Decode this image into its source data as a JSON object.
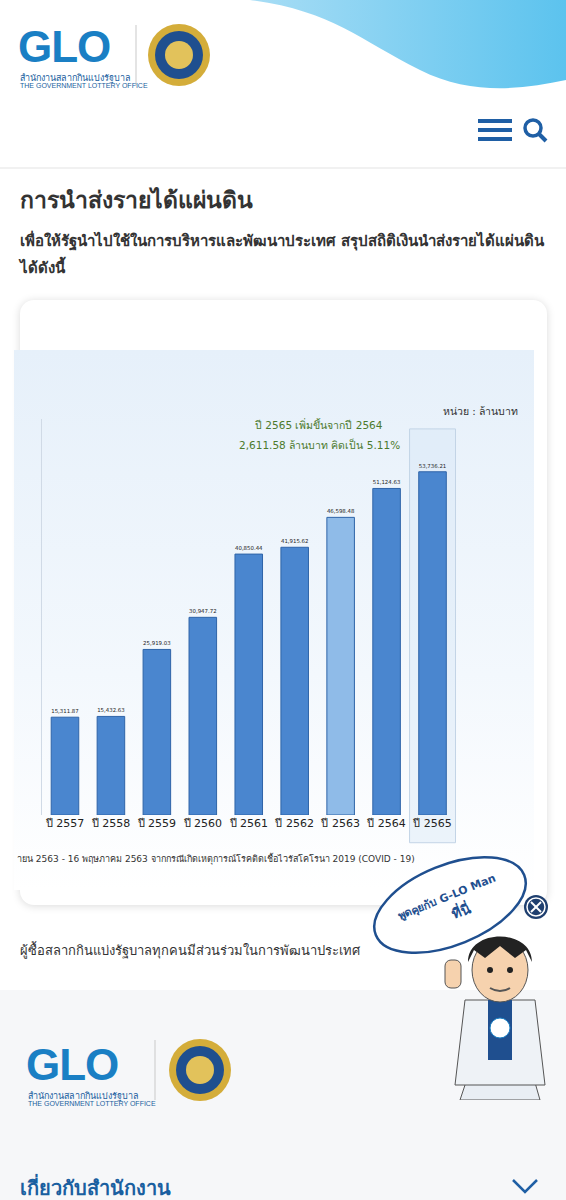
{
  "page": {
    "logo": "GLO",
    "org_th": "สำนักงานสลากกินแบ่งรัฐบาล",
    "org_en": "THE GOVERNMENT LOTTERY OFFICE",
    "heading": "การนำส่งรายได้แผ่นดิน",
    "description": "เพื่อให้รัฐนำไปใช้ในการบริหารและพัฒนาประเทศ สรุปสถิติเงินนำส่งรายได้แผ่นดิน ได้ดังนี้",
    "caption": "ผู้ซื้อสลากกินแบ่งรัฐบาลทุกคนมีส่วนร่วมในการพัฒนาประเทศ",
    "footer_section": "เกี่ยวกับสำนักงาน",
    "chat_bubble": [
      "พูดคุยกับ G-LO Man",
      "ที่นี่"
    ]
  },
  "chart_data": {
    "type": "bar",
    "categories": [
      "ปี 2557",
      "ปี 2558",
      "ปี 2559",
      "ปี 2560",
      "ปี 2561",
      "ปี 2562",
      "ปี 2563",
      "ปี 2564",
      "ปี 2565"
    ],
    "values": [
      15311.87,
      15432.63,
      25919.03,
      30947.72,
      40850.44,
      41915.62,
      46598.48,
      51124.63,
      53736.21
    ],
    "value_labels": [
      "15,311.87",
      "15,432.63",
      "25,919.03",
      "30,947.72",
      "40,850.44",
      "41,915.62",
      "46,598.48",
      "51,124.63",
      "53,736.21"
    ],
    "colors": [
      "#4a86cf",
      "#4a86cf",
      "#4a86cf",
      "#4a86cf",
      "#4a86cf",
      "#4a86cf",
      "#8fbbe8",
      "#4a86cf",
      "#4a86cf"
    ],
    "data_labels": true,
    "tick_labels": "x",
    "grid": false,
    "ylim": [
      0,
      62000
    ],
    "yticks": [],
    "annotations": [
      "ปี 2565 เพิ่มขึ้นจากปี 2564",
      "2,611.58 ล้านบาท คิดเป็น 5.11%"
    ],
    "unit_label": "หน่วย : ล้านบาท",
    "footnote": "ายน 2563 - 16 พฤษภาคม 2563 จากกรณีเกิดเหตุการณ์โรคติดเชื้อไวรัสโคโรนา 2019 (COVID - 19)"
  }
}
